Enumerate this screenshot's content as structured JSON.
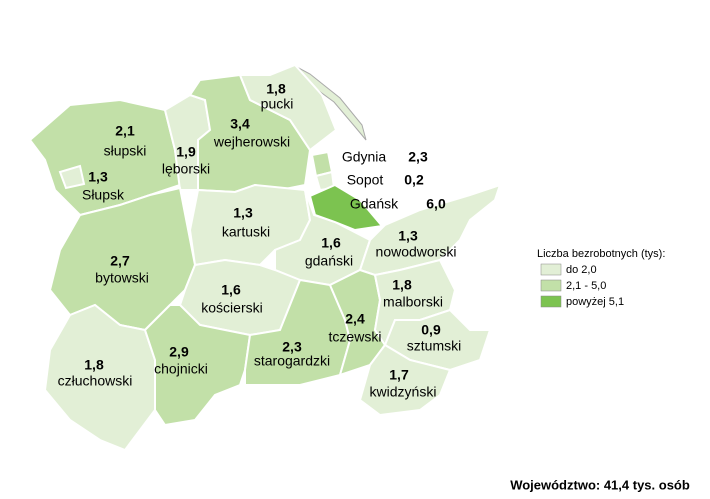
{
  "regions": [
    {
      "name": "słupski",
      "value": "2,1",
      "color": "#c2e0a8"
    },
    {
      "name": "Słupsk",
      "value": "1,3",
      "color": "#e2efd6"
    },
    {
      "name": "lęborski",
      "value": "1,9",
      "color": "#e2efd6"
    },
    {
      "name": "wejherowski",
      "value": "3,4",
      "color": "#c2e0a8"
    },
    {
      "name": "pucki",
      "value": "1,8",
      "color": "#e2efd6"
    },
    {
      "name": "kartuski",
      "value": "1,3",
      "color": "#e2efd6"
    },
    {
      "name": "gdański",
      "value": "1,6",
      "color": "#e2efd6"
    },
    {
      "name": "nowodworski",
      "value": "1,3",
      "color": "#e2efd6"
    },
    {
      "name": "bytowski",
      "value": "2,7",
      "color": "#c2e0a8"
    },
    {
      "name": "kościerski",
      "value": "1,6",
      "color": "#e2efd6"
    },
    {
      "name": "człuchowski",
      "value": "1,8",
      "color": "#e2efd6"
    },
    {
      "name": "chojnicki",
      "value": "2,9",
      "color": "#c2e0a8"
    },
    {
      "name": "starogardzki",
      "value": "2,3",
      "color": "#c2e0a8"
    },
    {
      "name": "tczewski",
      "value": "2,4",
      "color": "#c2e0a8"
    },
    {
      "name": "malborski",
      "value": "1,8",
      "color": "#e2efd6"
    },
    {
      "name": "sztumski",
      "value": "0,9",
      "color": "#e2efd6"
    },
    {
      "name": "kwidzyński",
      "value": "1,7",
      "color": "#e2efd6"
    }
  ],
  "cities": [
    {
      "name": "Gdynia",
      "value": "2,3",
      "color": "#c2e0a8"
    },
    {
      "name": "Sopot",
      "value": "0,2",
      "color": "#e2efd6"
    },
    {
      "name": "Gdańsk",
      "value": "6,0",
      "color": "#7cc350"
    }
  ],
  "legend": {
    "title": "Liczba bezrobotnych (tys):",
    "items": [
      {
        "label": "do 2,0",
        "color": "#e2efd6"
      },
      {
        "label": "2,1 - 5,0",
        "color": "#c2e0a8"
      },
      {
        "label": "powyżej 5,1",
        "color": "#7cc350"
      }
    ]
  },
  "footer": "Województwo: 41,4 tys. osób"
}
